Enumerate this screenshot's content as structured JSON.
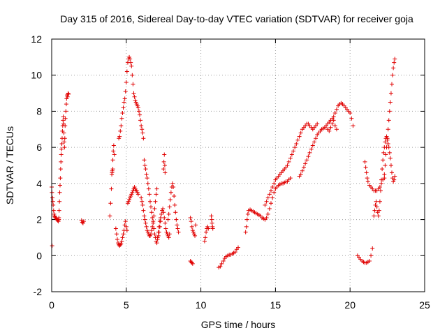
{
  "chart_data": {
    "type": "scatter",
    "title": "Day 315 of 2016, Sidereal Day-to-day VTEC variation (SDTVAR) for receiver goja",
    "xlabel": "GPS time / hours",
    "ylabel": "SDTVAR / TECUs",
    "xlim": [
      0,
      25
    ],
    "ylim": [
      -2,
      12
    ],
    "xticks": [
      0,
      5,
      10,
      15,
      20,
      25
    ],
    "yticks": [
      -2,
      0,
      2,
      4,
      6,
      8,
      10,
      12
    ],
    "xtick_labels": [
      "0",
      "5",
      "10",
      "15",
      "20",
      "25"
    ],
    "ytick_labels": [
      "-2",
      "0",
      "2",
      "4",
      "6",
      "8",
      "10",
      "12"
    ],
    "grid": true,
    "marker": "+",
    "color": "#e00000",
    "series": [
      {
        "name": "t0",
        "x": [
          0.0,
          0.02,
          0.05,
          0.08,
          0.1,
          0.13,
          0.16,
          0.19,
          0.22,
          0.25,
          0.28,
          0.32,
          0.36,
          0.4,
          0.45,
          0.48
        ],
        "y": [
          3.8,
          3.5,
          3.2,
          3.0,
          2.8,
          2.5,
          2.3,
          2.2,
          2.15,
          2.1,
          2.1,
          2.05,
          2.0,
          1.95,
          1.9,
          2.0
        ]
      },
      {
        "name": "t0b",
        "x": [
          0.03
        ],
        "y": [
          0.55
        ]
      },
      {
        "name": "t1",
        "x": [
          0.48,
          0.5,
          0.52,
          0.54,
          0.56,
          0.58,
          0.6,
          0.62,
          0.64,
          0.66,
          0.68,
          0.7,
          0.72,
          0.74,
          0.76,
          0.78,
          0.8,
          0.82,
          0.84,
          0.86,
          0.88,
          0.9,
          0.92,
          0.95,
          0.98,
          1.0,
          1.03,
          1.06,
          1.1,
          1.13
        ],
        "y": [
          2.1,
          2.5,
          3.0,
          3.5,
          3.9,
          4.3,
          4.8,
          5.2,
          5.6,
          5.9,
          6.2,
          6.5,
          6.9,
          7.2,
          7.5,
          7.7,
          7.3,
          6.8,
          6.3,
          6.0,
          6.5,
          7.2,
          7.6,
          8.0,
          8.4,
          8.7,
          8.9,
          8.8,
          9.0,
          8.95
        ]
      },
      {
        "name": "t2",
        "x": [
          2.0,
          2.05,
          2.1,
          2.15
        ],
        "y": [
          1.95,
          1.85,
          1.8,
          1.9
        ]
      },
      {
        "name": "t3",
        "x": [
          3.9,
          3.95,
          4.0,
          4.03,
          4.06,
          4.1,
          4.13,
          4.16,
          4.2,
          4.1,
          4.05
        ],
        "y": [
          2.2,
          2.9,
          3.7,
          4.5,
          4.7,
          5.3,
          5.8,
          6.1,
          5.6,
          4.8,
          4.6
        ]
      },
      {
        "name": "t4",
        "x": [
          4.3,
          4.35,
          4.4,
          4.45,
          4.5,
          4.55,
          4.6,
          4.65,
          4.7,
          4.75,
          4.8,
          4.85,
          4.9,
          4.95,
          5.0,
          5.05
        ],
        "y": [
          1.5,
          1.2,
          0.9,
          0.7,
          0.6,
          0.55,
          0.6,
          0.65,
          0.8,
          1.0,
          1.2,
          1.4,
          1.7,
          1.9,
          1.6,
          1.4
        ]
      },
      {
        "name": "t5",
        "x": [
          4.5,
          4.55,
          4.6,
          4.65,
          4.7,
          4.75,
          4.8,
          4.85,
          4.9,
          4.95,
          5.0,
          5.05,
          5.1,
          5.15,
          5.2,
          5.25,
          5.3,
          5.35,
          5.4,
          5.45,
          5.5,
          5.55,
          5.6,
          5.65,
          5.7,
          5.75,
          5.8,
          5.85,
          5.9,
          5.95,
          6.0,
          6.05,
          6.1,
          6.15
        ],
        "y": [
          6.5,
          6.6,
          6.9,
          7.2,
          7.6,
          7.9,
          8.2,
          8.5,
          8.7,
          9.1,
          9.6,
          10.2,
          10.7,
          10.9,
          11.0,
          10.9,
          10.7,
          10.5,
          10.0,
          9.5,
          9.0,
          8.8,
          8.6,
          8.5,
          8.4,
          8.3,
          8.2,
          8.0,
          7.8,
          7.5,
          7.2,
          7.0,
          6.8,
          6.5
        ]
      },
      {
        "name": "t6",
        "x": [
          5.1,
          5.15,
          5.2,
          5.25,
          5.3,
          5.35,
          5.4,
          5.45,
          5.5,
          5.55,
          5.6,
          5.65,
          5.7,
          5.75,
          5.8
        ],
        "y": [
          2.9,
          3.0,
          3.1,
          3.2,
          3.3,
          3.4,
          3.5,
          3.6,
          3.7,
          3.8,
          3.7,
          3.6,
          3.6,
          3.5,
          3.4
        ]
      },
      {
        "name": "t7",
        "x": [
          6.0,
          6.05,
          6.1,
          6.15,
          6.2,
          6.25,
          6.3,
          6.35,
          6.4,
          6.45,
          6.5,
          6.55,
          6.6,
          6.65,
          6.7,
          6.75,
          6.8,
          6.85,
          6.9,
          6.95,
          7.0,
          7.05,
          7.1,
          7.15,
          7.2,
          7.25,
          7.3
        ],
        "y": [
          3.2,
          3.0,
          2.8,
          2.5,
          2.2,
          2.0,
          1.8,
          1.6,
          1.4,
          1.3,
          1.2,
          1.1,
          1.1,
          1.2,
          1.4,
          1.6,
          1.8,
          1.5,
          1.2,
          1.0,
          0.8,
          0.7,
          0.9,
          1.1,
          1.3,
          1.6,
          1.9
        ]
      },
      {
        "name": "t8",
        "x": [
          6.2,
          6.25,
          6.3,
          6.35,
          6.4,
          6.45,
          6.5,
          6.55,
          6.6,
          6.65,
          6.7,
          6.75,
          6.8,
          6.85,
          6.9,
          6.95,
          7.0,
          7.05
        ],
        "y": [
          5.3,
          5.0,
          4.8,
          4.5,
          4.3,
          4.0,
          3.7,
          3.4,
          3.0,
          2.7,
          2.4,
          2.1,
          1.9,
          2.2,
          2.6,
          3.0,
          3.4,
          3.7
        ]
      },
      {
        "name": "t9",
        "x": [
          7.1,
          7.15,
          7.2,
          7.25,
          7.3,
          7.35,
          7.4,
          7.45,
          7.5,
          7.55,
          7.6,
          7.65,
          7.7,
          7.75,
          7.8,
          7.85,
          7.9
        ],
        "y": [
          1.0,
          1.3,
          1.6,
          1.9,
          2.1,
          2.3,
          2.5,
          2.6,
          2.4,
          2.1,
          1.8,
          1.5,
          1.3,
          1.2,
          1.1,
          1.0,
          1.2
        ]
      },
      {
        "name": "t10",
        "x": [
          7.5,
          7.52,
          7.55,
          7.58,
          7.6
        ],
        "y": [
          4.8,
          5.2,
          5.6,
          5.0,
          4.6
        ]
      },
      {
        "name": "t11",
        "x": [
          7.8,
          7.85,
          7.9,
          7.95,
          8.0,
          8.05,
          8.1,
          8.15,
          8.2,
          8.25,
          8.3,
          8.35,
          8.4,
          8.45,
          8.5
        ],
        "y": [
          2.0,
          2.3,
          2.7,
          3.1,
          3.5,
          3.8,
          4.0,
          3.8,
          3.3,
          2.8,
          2.4,
          2.0,
          1.7,
          1.5,
          1.3
        ]
      },
      {
        "name": "t12",
        "x": [
          9.3,
          9.35,
          9.4,
          9.45,
          9.5,
          9.55,
          9.6,
          9.65
        ],
        "y": [
          2.1,
          1.9,
          1.6,
          1.4,
          1.3,
          1.2,
          1.1,
          1.7
        ]
      },
      {
        "name": "t13",
        "x": [
          9.3,
          9.35,
          9.4,
          9.45
        ],
        "y": [
          -0.3,
          -0.35,
          -0.4,
          -0.45
        ]
      },
      {
        "name": "t14",
        "x": [
          10.25,
          10.3,
          10.35,
          10.4,
          10.45,
          10.5
        ],
        "y": [
          0.8,
          1.0,
          1.3,
          1.5,
          1.6,
          1.5
        ]
      },
      {
        "name": "t15",
        "x": [
          10.7,
          10.72,
          10.75,
          10.78,
          10.8
        ],
        "y": [
          2.2,
          2.0,
          1.8,
          1.6,
          1.5
        ]
      },
      {
        "name": "t16",
        "x": [
          11.2,
          11.3,
          11.4,
          11.5,
          11.6,
          11.7,
          11.8,
          11.9,
          12.0,
          12.1,
          12.2,
          12.3,
          12.4,
          12.5
        ],
        "y": [
          -0.65,
          -0.6,
          -0.45,
          -0.3,
          -0.15,
          -0.05,
          0.0,
          0.05,
          0.05,
          0.1,
          0.15,
          0.2,
          0.35,
          0.45
        ]
      },
      {
        "name": "t17",
        "x": [
          13.0,
          13.05,
          13.1,
          13.15,
          13.2,
          13.3,
          13.4,
          13.5,
          13.6,
          13.7,
          13.8,
          13.9,
          14.0,
          14.1,
          14.2,
          14.3,
          14.4,
          14.5,
          14.6,
          14.7,
          14.8,
          14.9,
          15.0,
          15.1,
          15.2,
          15.3,
          15.4,
          15.5,
          15.6,
          15.7,
          15.8,
          15.9,
          16.0
        ],
        "y": [
          1.3,
          1.6,
          2.0,
          2.3,
          2.5,
          2.55,
          2.5,
          2.45,
          2.4,
          2.35,
          2.3,
          2.25,
          2.2,
          2.1,
          2.05,
          2.0,
          2.1,
          2.3,
          2.6,
          2.9,
          3.2,
          3.5,
          3.7,
          3.8,
          3.9,
          3.95,
          4.0,
          4.0,
          4.05,
          4.1,
          4.1,
          4.2,
          4.3
        ]
      },
      {
        "name": "t18",
        "x": [
          14.3,
          14.4,
          14.5,
          14.6,
          14.7,
          14.8,
          14.9,
          15.0,
          15.1,
          15.2,
          15.3,
          15.4,
          15.5,
          15.6,
          15.7,
          15.8,
          15.9,
          16.0,
          16.1,
          16.2,
          16.3,
          16.4,
          16.5,
          16.6,
          16.7,
          16.8,
          16.9,
          17.0,
          17.1,
          17.2,
          17.3,
          17.4,
          17.5,
          17.6,
          17.7,
          17.8
        ],
        "y": [
          2.8,
          3.0,
          3.2,
          3.4,
          3.6,
          3.8,
          4.0,
          4.2,
          4.3,
          4.4,
          4.5,
          4.6,
          4.7,
          4.8,
          4.9,
          5.0,
          5.2,
          5.4,
          5.6,
          5.8,
          6.0,
          6.2,
          6.4,
          6.6,
          6.8,
          7.0,
          7.1,
          7.2,
          7.3,
          7.3,
          7.2,
          7.1,
          7.0,
          7.1,
          7.2,
          7.3
        ]
      },
      {
        "name": "t19",
        "x": [
          16.6,
          16.7,
          16.8,
          16.9,
          17.0,
          17.1,
          17.2,
          17.3,
          17.4,
          17.5,
          17.6,
          17.7,
          17.8,
          17.9,
          18.0,
          18.1,
          18.2,
          18.3,
          18.4,
          18.5,
          18.6,
          18.7,
          18.8,
          18.9,
          19.0,
          19.1,
          19.2,
          19.3,
          19.4,
          19.5,
          19.6,
          19.7,
          19.8,
          19.9,
          20.0,
          20.1,
          20.2
        ],
        "y": [
          4.4,
          4.5,
          4.7,
          4.9,
          5.1,
          5.3,
          5.5,
          5.7,
          5.9,
          6.1,
          6.3,
          6.5,
          6.7,
          6.8,
          6.9,
          7.0,
          7.05,
          7.1,
          7.2,
          7.3,
          7.4,
          7.5,
          7.6,
          7.7,
          7.9,
          8.1,
          8.3,
          8.4,
          8.45,
          8.4,
          8.3,
          8.2,
          8.1,
          8.0,
          7.9,
          7.6,
          7.2
        ]
      },
      {
        "name": "t20",
        "x": [
          18.5,
          18.6,
          18.7,
          18.8,
          18.9,
          19.0,
          19.1
        ],
        "y": [
          7.0,
          6.9,
          7.1,
          7.3,
          7.5,
          7.2,
          7.0
        ]
      },
      {
        "name": "t21",
        "x": [
          20.5,
          20.6,
          20.7,
          20.8,
          20.9,
          21.0,
          21.1,
          21.2,
          21.3,
          21.4,
          21.5
        ],
        "y": [
          0.0,
          -0.1,
          -0.2,
          -0.3,
          -0.35,
          -0.4,
          -0.4,
          -0.35,
          -0.3,
          0.0,
          0.4
        ]
      },
      {
        "name": "t22",
        "x": [
          21.0,
          21.05,
          21.1,
          21.15,
          21.2,
          21.3,
          21.4,
          21.5,
          21.6,
          21.7,
          21.8,
          21.9,
          22.0,
          22.1,
          22.2,
          22.3
        ],
        "y": [
          5.2,
          4.9,
          4.6,
          4.3,
          4.1,
          3.9,
          3.8,
          3.7,
          3.6,
          3.6,
          3.6,
          3.7,
          3.8,
          4.0,
          4.2,
          4.3
        ]
      },
      {
        "name": "t23",
        "x": [
          21.6,
          21.65,
          21.7,
          21.75,
          21.8,
          21.85,
          21.9,
          21.95,
          22.0,
          22.05,
          22.1,
          22.15,
          22.2,
          22.25,
          22.3,
          22.35,
          22.4,
          22.45,
          22.5,
          22.55,
          22.6,
          22.65,
          22.7,
          22.75,
          22.8,
          22.85,
          22.9,
          22.95,
          23.0
        ],
        "y": [
          2.2,
          2.5,
          2.8,
          3.0,
          2.7,
          2.4,
          2.2,
          2.5,
          3.0,
          3.6,
          4.2,
          4.8,
          5.3,
          5.7,
          6.0,
          6.3,
          6.5,
          6.6,
          6.4,
          6.2,
          6.0,
          5.7,
          5.4,
          5.0,
          4.6,
          4.3,
          4.1,
          4.2,
          4.4
        ]
      },
      {
        "name": "t24",
        "x": [
          22.3,
          22.35,
          22.4,
          22.45,
          22.5,
          22.55,
          22.6,
          22.65,
          22.7,
          22.75,
          22.8,
          22.85,
          22.9,
          22.95,
          23.0
        ],
        "y": [
          4.5,
          5.0,
          5.6,
          6.0,
          6.5,
          7.0,
          7.5,
          8.0,
          8.5,
          9.0,
          9.5,
          10.0,
          10.4,
          10.7,
          10.9
        ]
      }
    ]
  }
}
